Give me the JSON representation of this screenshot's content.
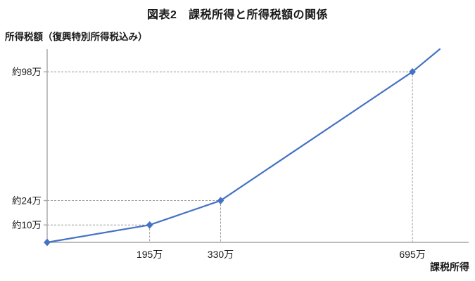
{
  "title": "図表2　課税所得と所得税額の関係",
  "y_axis_label": "所得税額（復興特別所得税込み）",
  "x_axis_label": "課税所得",
  "chart_data": {
    "type": "line",
    "title": "図表2　課税所得と所得税額の関係",
    "xlabel": "課税所得",
    "ylabel": "所得税額（復興特別所得税込み）",
    "units": "万円",
    "xlim": [
      0,
      802
    ],
    "ylim": [
      0,
      111
    ],
    "grid": false,
    "legend": false,
    "series": [
      {
        "name": "所得税額",
        "points": [
          {
            "x": 0,
            "y": 0
          },
          {
            "x": 195,
            "y": 10
          },
          {
            "x": 330,
            "y": 24
          },
          {
            "x": 695,
            "y": 98
          }
        ],
        "extension_point": {
          "x": 747,
          "y": 111
        }
      }
    ],
    "x_ticks": [
      {
        "value": 195,
        "label": "195万"
      },
      {
        "value": 330,
        "label": "330万"
      },
      {
        "value": 695,
        "label": "695万"
      }
    ],
    "y_ticks": [
      {
        "value": 10,
        "label": "約10万"
      },
      {
        "value": 24,
        "label": "約24万"
      },
      {
        "value": 98,
        "label": "約98万"
      }
    ],
    "colors": {
      "line": "#4472c4",
      "marker": "#4472c4",
      "axis": "#a6a6a6",
      "guide": "#999999",
      "text": "#1a1a1a"
    }
  }
}
